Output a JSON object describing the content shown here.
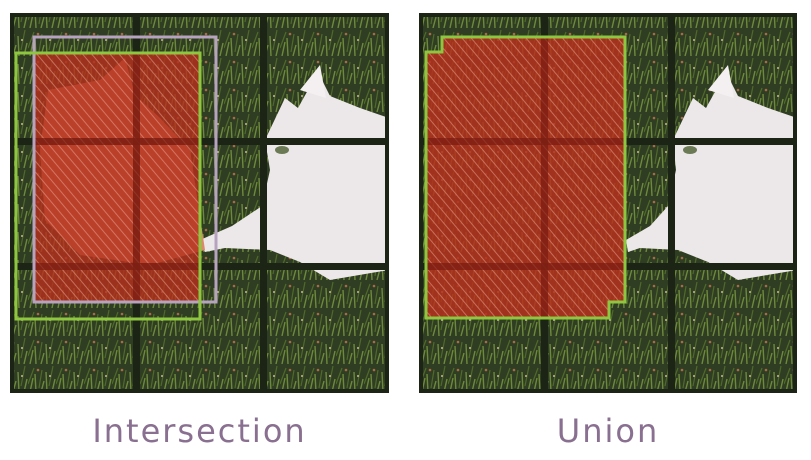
{
  "captions": {
    "left": "Intersection",
    "right": "Union"
  },
  "colors": {
    "grid": "#1c2416",
    "grass_base": "#2f3d22",
    "cat_fur": "#ece7e9",
    "region_fill": "#b5301c",
    "green_box": "#8ec63f",
    "gray_box": "#b7a3bf",
    "caption_text": "#8a7090"
  }
}
